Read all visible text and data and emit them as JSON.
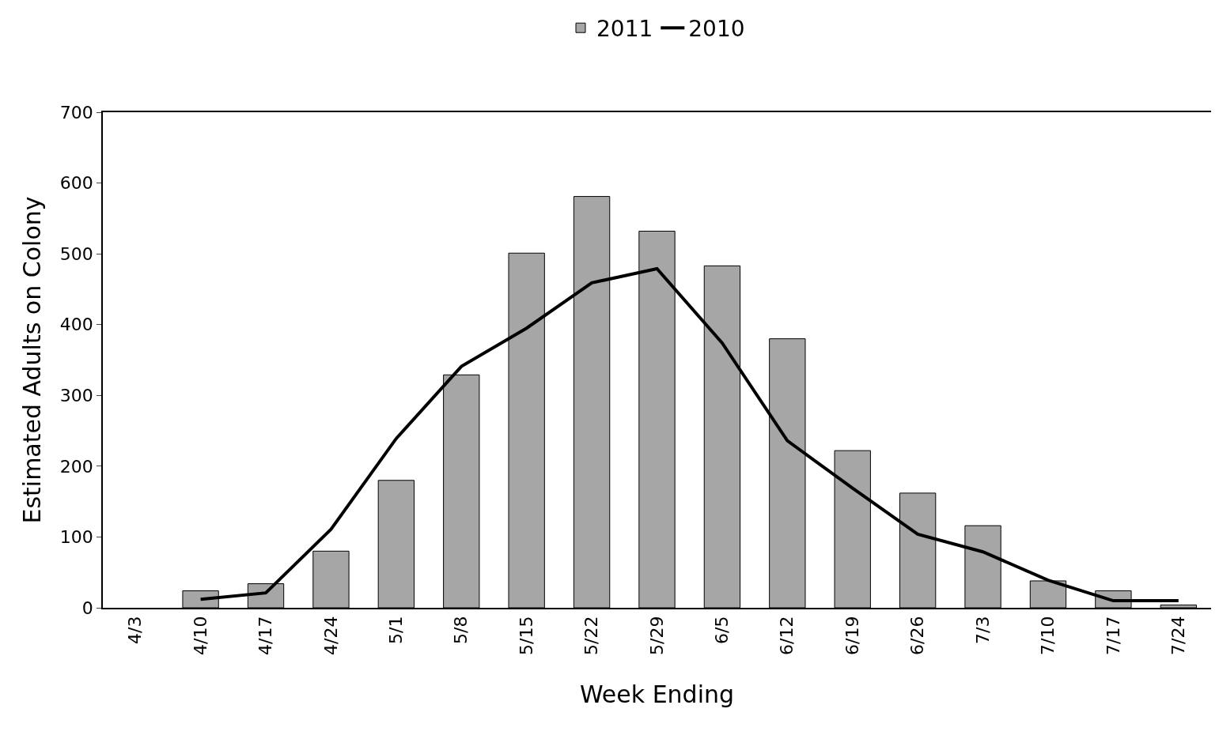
{
  "chart_data": {
    "type": "bar",
    "xlabel": "Week Ending",
    "ylabel": "Estimated Adults on Colony",
    "categories": [
      "4/3",
      "4/10",
      "4/17",
      "4/24",
      "5/1",
      "5/8",
      "5/15",
      "5/22",
      "5/29",
      "6/5",
      "6/12",
      "6/19",
      "6/26",
      "7/3",
      "7/10",
      "7/17",
      "7/24"
    ],
    "series": [
      {
        "name": "2011",
        "color": "#a6a6a6",
        "values": [
          null,
          24,
          34,
          80,
          180,
          329,
          501,
          581,
          532,
          483,
          380,
          222,
          162,
          116,
          38,
          24,
          4
        ]
      },
      {
        "name": "2010",
        "type": "line",
        "color": "#000000",
        "values": [
          null,
          12,
          21,
          111,
          239,
          341,
          395,
          459,
          479,
          374,
          236,
          169,
          104,
          79,
          39,
          10,
          10
        ]
      }
    ],
    "ylim": [
      0,
      700
    ],
    "yticks": [
      0,
      100,
      200,
      300,
      400,
      500,
      600,
      700
    ],
    "grid": false,
    "legend": "top",
    "marker": "none",
    "line_style": "solid"
  }
}
